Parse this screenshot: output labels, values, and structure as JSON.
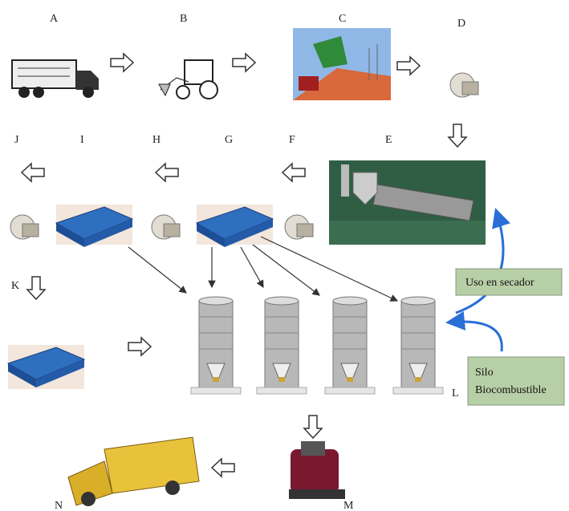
{
  "nodes": [
    {
      "label": "A"
    },
    {
      "label": "B"
    },
    {
      "label": "C"
    },
    {
      "label": "D"
    },
    {
      "label": "E"
    },
    {
      "label": "F"
    },
    {
      "label": "G"
    },
    {
      "label": "H"
    },
    {
      "label": "I"
    },
    {
      "label": "J"
    },
    {
      "label": "K"
    },
    {
      "label": "L"
    },
    {
      "label": "M"
    },
    {
      "label": "N"
    }
  ],
  "notes": [
    {
      "lines": [
        "Uso en secador"
      ]
    },
    {
      "lines": [
        "Silo",
        "Biocombustible"
      ]
    }
  ]
}
